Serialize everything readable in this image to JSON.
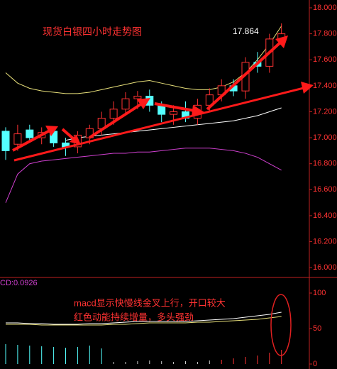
{
  "chart_data": [
    {
      "type": "candlestick",
      "title": "现货白银四小时走势图",
      "annotation": "17.864",
      "up_color": "#ff3232",
      "down_color": "#54ffff",
      "open": [
        17.05,
        16.95,
        17.06,
        17.0,
        17.05,
        16.96,
        16.93,
        17.0,
        17.07,
        17.15,
        17.22,
        17.3,
        17.32,
        17.25,
        17.18,
        17.2,
        17.15,
        17.25,
        17.33,
        17.4,
        17.36,
        17.58,
        17.55,
        17.76
      ],
      "high": [
        17.08,
        17.1,
        17.1,
        17.08,
        17.08,
        17.0,
        17.05,
        17.1,
        17.2,
        17.28,
        17.35,
        17.36,
        17.37,
        17.28,
        17.25,
        17.28,
        17.3,
        17.38,
        17.45,
        17.45,
        17.62,
        17.66,
        17.8,
        17.88
      ],
      "low": [
        16.83,
        16.9,
        16.98,
        16.95,
        16.93,
        16.86,
        16.88,
        16.95,
        17.02,
        17.1,
        17.18,
        17.22,
        17.2,
        17.12,
        17.1,
        17.12,
        17.1,
        17.2,
        17.28,
        17.32,
        17.3,
        17.5,
        17.5,
        17.72
      ],
      "close": [
        16.9,
        17.03,
        17.0,
        17.04,
        16.96,
        16.93,
        17.02,
        17.07,
        17.15,
        17.22,
        17.3,
        17.32,
        17.25,
        17.18,
        17.2,
        17.15,
        17.25,
        17.33,
        17.4,
        17.36,
        17.58,
        17.55,
        17.76,
        17.8
      ],
      "series": [
        {
          "color": "#e8e07a",
          "values": [
            17.5,
            17.42,
            17.38,
            17.36,
            17.35,
            17.34,
            17.34,
            17.35,
            17.37,
            17.39,
            17.41,
            17.43,
            17.44,
            17.42,
            17.4,
            17.38,
            17.37,
            17.37,
            17.39,
            17.43,
            17.5,
            17.6,
            17.72,
            17.86
          ]
        },
        {
          "color": "#ffffff",
          "values": [
            null,
            null,
            null,
            null,
            null,
            16.98,
            17.0,
            17.01,
            17.02,
            17.03,
            17.04,
            17.05,
            17.06,
            17.07,
            17.08,
            17.09,
            17.1,
            17.11,
            17.12,
            17.13,
            17.15,
            17.17,
            17.2,
            17.23
          ]
        },
        {
          "color": "#d040d0",
          "values": [
            16.5,
            16.72,
            16.8,
            16.82,
            16.83,
            16.84,
            16.85,
            16.86,
            16.87,
            16.88,
            16.88,
            16.89,
            16.89,
            16.9,
            16.91,
            16.92,
            16.92,
            16.92,
            16.91,
            16.9,
            16.88,
            16.85,
            16.8,
            16.75
          ]
        }
      ],
      "ylim": [
        15.93,
        18.06
      ],
      "yticks": [
        {
          "value": 18,
          "label": "18.000"
        },
        {
          "value": 17.8,
          "label": "17.800"
        },
        {
          "value": 17.6,
          "label": "17.600"
        },
        {
          "value": 17.4,
          "label": "17.400"
        },
        {
          "value": 17.2,
          "label": "17.200"
        },
        {
          "value": 17,
          "label": "17.000"
        },
        {
          "value": 16.8,
          "label": "16.800"
        },
        {
          "value": 16.6,
          "label": "16.600"
        },
        {
          "value": 16.4,
          "label": "16.400"
        },
        {
          "value": 16.2,
          "label": "16.200"
        },
        {
          "value": 16,
          "label": "16.000"
        }
      ]
    },
    {
      "type": "macd",
      "label": "CD:0.0926",
      "annotation": [
        "macd显示快慢线金叉上行，开口较大",
        "红色动能持续增量，多头强劲"
      ],
      "series": [
        {
          "color": "#ffffff",
          "values": [
            58,
            58,
            57,
            57,
            56,
            56,
            56,
            57,
            57,
            58,
            59,
            60,
            60,
            60,
            60,
            60,
            61,
            62,
            63,
            64,
            66,
            68,
            70,
            73
          ]
        },
        {
          "color": "#e8e07a",
          "values": [
            56,
            56,
            56,
            55,
            55,
            55,
            55,
            55,
            55,
            56,
            56,
            57,
            58,
            58,
            58,
            58,
            59,
            59,
            60,
            61,
            62,
            63,
            65,
            67
          ]
        }
      ],
      "histogram": [
        28,
        27,
        26,
        25,
        24,
        23,
        24,
        26,
        22,
        3,
        3,
        4,
        5,
        4,
        3,
        4,
        3,
        5,
        6,
        8,
        10,
        12,
        16,
        20
      ],
      "histogram_colors": [
        "#54ffff",
        "#54ffff",
        "#54ffff",
        "#54ffff",
        "#54ffff",
        "#54ffff",
        "#54ffff",
        "#54ffff",
        "#54ffff",
        "#cccccc",
        "#cccccc",
        "#cccccc",
        "#cccccc",
        "#cccccc",
        "#cccccc",
        "#cccccc",
        "#cccccc",
        "#cccccc",
        "#ff3232",
        "#ff3232",
        "#ff3232",
        "#ff3232",
        "#ff3232",
        "#ff3232"
      ],
      "ylim": [
        -7,
        120
      ],
      "yticks": [
        100,
        50,
        0
      ]
    }
  ]
}
